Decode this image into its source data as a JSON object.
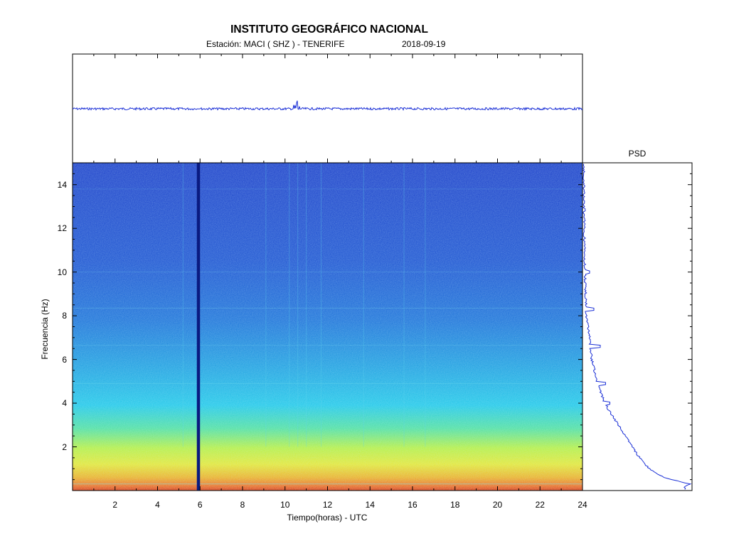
{
  "header": {
    "title": "INSTITUTO GEOGRÁFICO NACIONAL",
    "station": "Estación:  MACI ( SHZ ) - TENERIFE",
    "date": "2018-09-19"
  },
  "psd_label": "PSD",
  "colors": {
    "trace": "#1a2fd6",
    "low": "#1a3fd0",
    "mid": "#22c8e8",
    "high": "#f0f030",
    "peak": "#e04010",
    "gap": "#0a1a80"
  },
  "chart_data": [
    {
      "type": "line",
      "name": "seismogram",
      "x_range": [
        0,
        24
      ],
      "notes_visible": "waveform trace",
      "events": [
        {
          "x": 10.55,
          "amplitude_relative": 1.0
        }
      ]
    },
    {
      "type": "heatmap",
      "name": "spectrogram",
      "xlabel": "Tiempo(horas) - UTC",
      "ylabel": "Frecuencia  (Hz)",
      "xlim": [
        0,
        24
      ],
      "ylim": [
        0,
        15
      ],
      "x_ticks": [
        "2",
        "4",
        "6",
        "8",
        "10",
        "12",
        "14",
        "16",
        "18",
        "20",
        "22",
        "24"
      ],
      "y_ticks": [
        "2",
        "4",
        "6",
        "8",
        "10",
        "12",
        "14"
      ],
      "data_gap_hours": [
        5.85,
        6.0
      ],
      "energy_by_frequency": [
        {
          "freq": 0.3,
          "level": "very high"
        },
        {
          "freq": 1.0,
          "level": "high"
        },
        {
          "freq": 2.5,
          "level": "medium-high"
        },
        {
          "freq": 4.0,
          "level": "medium"
        },
        {
          "freq": 8.0,
          "level": "low"
        },
        {
          "freq": 14.0,
          "level": "very low"
        }
      ]
    },
    {
      "type": "line",
      "name": "PSD",
      "title": "PSD",
      "orientation": "vertical",
      "y_range_hz": [
        0,
        15
      ],
      "profile": [
        {
          "freq": 0.15,
          "power": 0.95
        },
        {
          "freq": 0.3,
          "power": 1.0
        },
        {
          "freq": 0.6,
          "power": 0.75
        },
        {
          "freq": 1.0,
          "power": 0.62
        },
        {
          "freq": 1.5,
          "power": 0.53
        },
        {
          "freq": 2.0,
          "power": 0.46
        },
        {
          "freq": 3.0,
          "power": 0.33
        },
        {
          "freq": 4.0,
          "power": 0.2
        },
        {
          "freq": 5.0,
          "power": 0.13
        },
        {
          "freq": 6.0,
          "power": 0.08
        },
        {
          "freq": 7.0,
          "power": 0.06
        },
        {
          "freq": 8.0,
          "power": 0.03
        },
        {
          "freq": 10.0,
          "power": 0.015
        },
        {
          "freq": 12.0,
          "power": 0.01
        },
        {
          "freq": 15.0,
          "power": 0.005
        }
      ],
      "spikes": [
        {
          "freq": 8.3,
          "power": 0.1
        },
        {
          "freq": 6.6,
          "power": 0.16
        },
        {
          "freq": 4.9,
          "power": 0.21
        },
        {
          "freq": 4.0,
          "power": 0.25
        },
        {
          "freq": 10.0,
          "power": 0.06
        }
      ]
    }
  ]
}
